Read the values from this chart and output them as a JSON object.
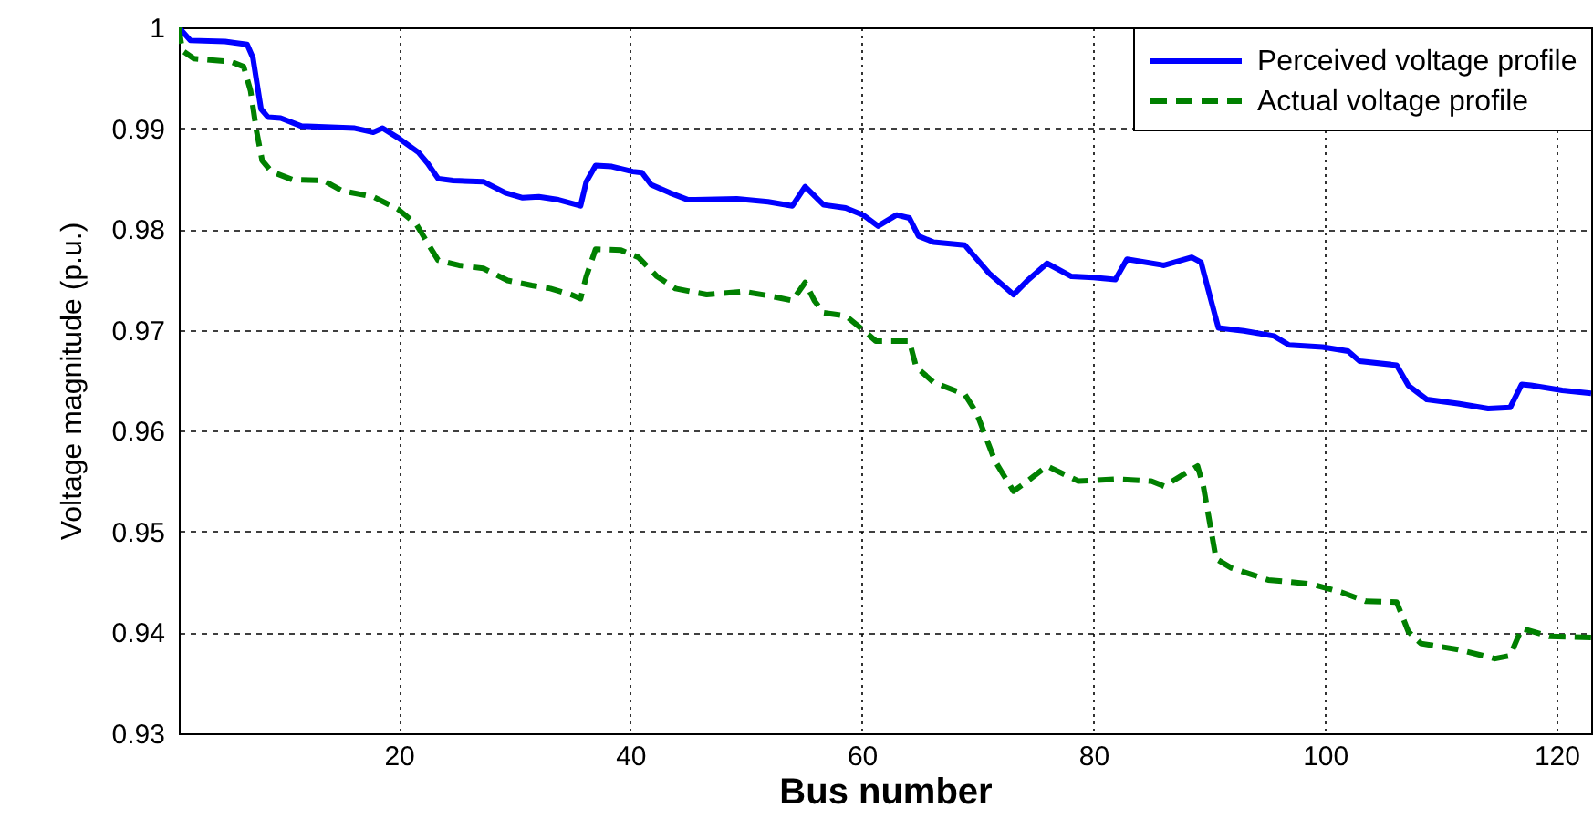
{
  "chart_data": {
    "type": "line",
    "xlabel": "Bus number",
    "ylabel": "Voltage magnitude (p.u.)",
    "xlim": [
      1,
      123
    ],
    "xticks": [
      20,
      40,
      60,
      80,
      100,
      120
    ],
    "ylim": [
      0.93,
      1
    ],
    "yticks": [
      0.93,
      0.94,
      0.95,
      0.96,
      0.97,
      0.98,
      0.99,
      1
    ],
    "grid": true,
    "legend": "top right",
    "series": [
      {
        "name": "Perceived voltage profile",
        "color": "#0000ff",
        "line_style": "solid",
        "x": [
          1,
          2,
          5,
          6.9,
          7.4,
          8.1,
          8.7,
          9.8,
          11.6,
          16.2,
          17.8,
          18.6,
          20,
          21.7,
          22.5,
          23.4,
          24.7,
          27.3,
          29.2,
          30.7,
          32.1,
          33.8,
          35.7,
          36.2,
          37,
          38.4,
          40.2,
          41,
          41.8,
          43.4,
          45,
          49.2,
          51.9,
          54,
          55.1,
          56.7,
          58.6,
          60.1,
          61.4,
          63,
          64.1,
          64.9,
          66.2,
          68.9,
          71,
          73.1,
          74.4,
          76,
          78.1,
          80,
          81.9,
          82.9,
          86.1,
          88.5,
          89.3,
          90.1,
          90.8,
          93,
          95.6,
          96.9,
          99.8,
          102,
          103,
          106.2,
          107.2,
          108.8,
          111.5,
          114.1,
          116,
          117,
          117.8,
          120.5,
          123
        ],
        "values": [
          1.0,
          0.9987,
          0.9986,
          0.9983,
          0.997,
          0.9919,
          0.9911,
          0.991,
          0.9902,
          0.99,
          0.9896,
          0.99,
          0.989,
          0.9876,
          0.9865,
          0.985,
          0.9848,
          0.9847,
          0.9836,
          0.9831,
          0.9832,
          0.9829,
          0.9823,
          0.9847,
          0.9863,
          0.9862,
          0.9857,
          0.9856,
          0.9844,
          0.9836,
          0.9829,
          0.983,
          0.9827,
          0.9823,
          0.9842,
          0.9824,
          0.9821,
          0.9814,
          0.9803,
          0.9814,
          0.9811,
          0.9793,
          0.9787,
          0.9784,
          0.9756,
          0.9735,
          0.975,
          0.9766,
          0.9753,
          0.9752,
          0.975,
          0.977,
          0.9764,
          0.9772,
          0.9767,
          0.9732,
          0.9702,
          0.9699,
          0.9694,
          0.9685,
          0.9683,
          0.9679,
          0.9669,
          0.9665,
          0.9645,
          0.9631,
          0.9627,
          0.9622,
          0.9623,
          0.9646,
          0.9645,
          0.964,
          0.9637
        ]
      },
      {
        "name": "Actual voltage profile",
        "color": "#008000",
        "line_style": "dashed",
        "x": [
          1,
          1.3,
          2.3,
          5.5,
          6.6,
          7.2,
          7.7,
          8.2,
          9,
          10.8,
          13.5,
          15.1,
          17.8,
          19.9,
          21.5,
          22.6,
          23.4,
          25.2,
          27.3,
          29.4,
          31.5,
          33.1,
          34.9,
          35.7,
          36.2,
          37,
          39.2,
          40.7,
          42.3,
          43.9,
          46.6,
          49.8,
          51.9,
          54,
          55.1,
          55.9,
          56.7,
          58.6,
          60.1,
          61.2,
          64.1,
          64.7,
          66.2,
          68.9,
          69.9,
          71.5,
          73.1,
          74.2,
          76,
          78.7,
          81.9,
          85,
          86.1,
          89,
          89.5,
          90.6,
          91.9,
          95.1,
          98.8,
          101.4,
          103.5,
          106.2,
          107.2,
          108.3,
          111.5,
          114.7,
          116,
          117,
          119.4,
          123
        ],
        "values": [
          1.0,
          0.9977,
          0.9969,
          0.9966,
          0.9961,
          0.9937,
          0.9898,
          0.9868,
          0.9857,
          0.9849,
          0.9848,
          0.9838,
          0.9832,
          0.982,
          0.9805,
          0.9784,
          0.9769,
          0.9764,
          0.9761,
          0.9749,
          0.9744,
          0.9741,
          0.9735,
          0.9731,
          0.9753,
          0.978,
          0.9779,
          0.9772,
          0.9753,
          0.9741,
          0.9735,
          0.9738,
          0.9734,
          0.9729,
          0.9747,
          0.9729,
          0.9717,
          0.9714,
          0.97,
          0.9689,
          0.9689,
          0.9663,
          0.9648,
          0.9636,
          0.9618,
          0.957,
          0.954,
          0.9549,
          0.9565,
          0.955,
          0.9552,
          0.955,
          0.9545,
          0.9565,
          0.9545,
          0.9473,
          0.9464,
          0.9452,
          0.9448,
          0.944,
          0.9431,
          0.943,
          0.9401,
          0.9389,
          0.9383,
          0.9374,
          0.9377,
          0.9404,
          0.9396,
          0.9395
        ]
      }
    ]
  }
}
